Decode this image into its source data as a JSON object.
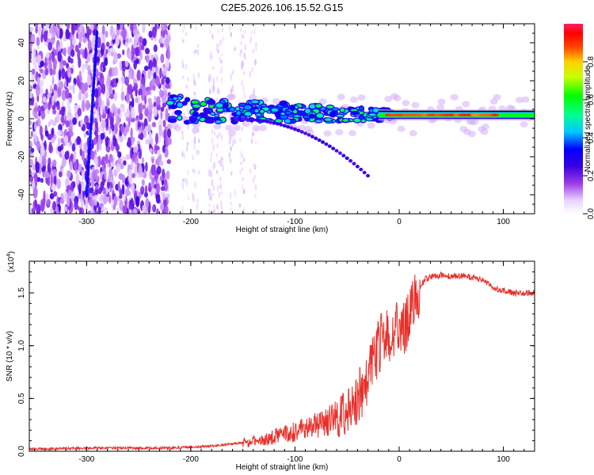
{
  "title": "C2E5.2026.106.15.52.G15",
  "colors": {
    "snr_line": "#e8302a",
    "frame": "#000000",
    "background": "#ffffff"
  },
  "chart_data": [
    {
      "type": "heatmap",
      "title": "C2E5.2026.106.15.52.G15",
      "xlabel": "Height of straight line (km)",
      "ylabel": "Frequency (Hz)",
      "xlim": [
        -355,
        130
      ],
      "ylim": [
        -50,
        50
      ],
      "xticks": [
        -300,
        -200,
        -100,
        0,
        100
      ],
      "xtick_labels": [
        "-300",
        "-200",
        "-100",
        "0",
        "100"
      ],
      "yticks": [
        -40,
        -20,
        0,
        20,
        40
      ],
      "ytick_labels": [
        "-40",
        "-20",
        "0",
        "20",
        "40"
      ],
      "colorbar": {
        "label": "Normalized spectral amplitude",
        "range": [
          0,
          1
        ],
        "ticks": [
          0.0,
          0.2,
          0.4,
          0.6,
          0.8
        ],
        "tick_labels": [
          "0.0",
          "0.2",
          "0.4",
          "0.6",
          "0.8"
        ]
      },
      "features": {
        "noise_region_x": [
          -355,
          -220
        ],
        "signal_start_x": -220,
        "signal_band_hz": [
          -5,
          10
        ],
        "tone_start_x": -20,
        "tone_freq_hz": 2,
        "lower_branch_end": [
          -30,
          -30
        ],
        "streak_start": [
          -290,
          45
        ],
        "streak_end": [
          -300,
          -40
        ]
      }
    },
    {
      "type": "line",
      "xlabel": "Height of straight line (km)",
      "ylabel": "SNR (10 * v/v)",
      "y_scale_note": "(x10",
      "y_scale_exp": "4",
      "y_scale_close": ")",
      "xlim": [
        -355,
        130
      ],
      "ylim": [
        0,
        1.8
      ],
      "xticks": [
        -300,
        -200,
        -100,
        0,
        100
      ],
      "xtick_labels": [
        "-300",
        "-200",
        "-100",
        "0",
        "100"
      ],
      "yticks": [
        0.0,
        0.5,
        1.0,
        1.5
      ],
      "ytick_labels": [
        "0.0",
        "0.5",
        "1.0",
        "1.5"
      ],
      "series": [
        {
          "name": "SNR",
          "x": [
            -355,
            -300,
            -250,
            -220,
            -200,
            -180,
            -160,
            -140,
            -120,
            -100,
            -80,
            -60,
            -50,
            -40,
            -30,
            -25,
            -20,
            -15,
            -10,
            -5,
            0,
            5,
            10,
            15,
            20,
            25,
            30,
            40,
            50,
            60,
            70,
            80,
            90,
            100,
            110,
            120,
            130
          ],
          "values": [
            0.02,
            0.03,
            0.03,
            0.03,
            0.04,
            0.05,
            0.07,
            0.09,
            0.13,
            0.18,
            0.25,
            0.3,
            0.38,
            0.5,
            0.7,
            0.8,
            1.0,
            1.05,
            1.1,
            1.12,
            1.18,
            1.2,
            1.3,
            1.45,
            1.55,
            1.63,
            1.65,
            1.67,
            1.66,
            1.66,
            1.65,
            1.62,
            1.55,
            1.52,
            1.5,
            1.5,
            1.5
          ]
        }
      ]
    }
  ]
}
